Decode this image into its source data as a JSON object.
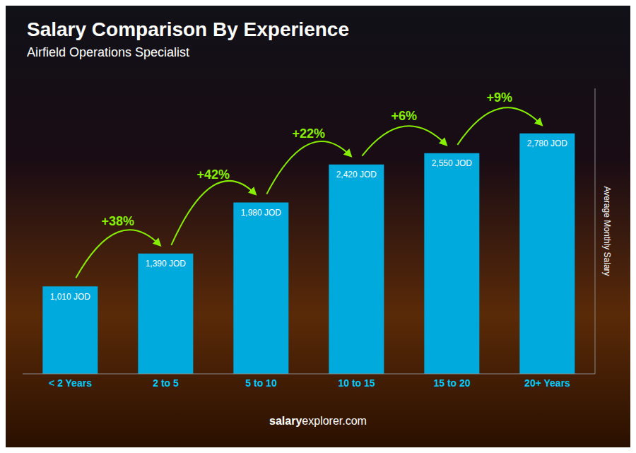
{
  "chart_data": {
    "type": "bar",
    "title": "Salary Comparison By Experience",
    "subtitle": "Airfield Operations Specialist",
    "categories": [
      "< 2 Years",
      "2 to 5",
      "5 to 10",
      "10 to 15",
      "15 to 20",
      "20+ Years"
    ],
    "values": [
      1010,
      1390,
      1980,
      2420,
      2550,
      2780
    ],
    "value_labels": [
      "1,010 JOD",
      "1,390 JOD",
      "1,980 JOD",
      "2,420 JOD",
      "2,550 JOD",
      "2,780 JOD"
    ],
    "data_labels": true,
    "ylabel": "Average Monthly Salary",
    "ylim": [
      0,
      3300
    ],
    "color": "#00aadd",
    "grid": false,
    "tick_labels": "x",
    "annotations": [
      "+38%",
      "+42%",
      "+22%",
      "+6%",
      "+9%",
      "salary",
      "explorer.com"
    ]
  }
}
